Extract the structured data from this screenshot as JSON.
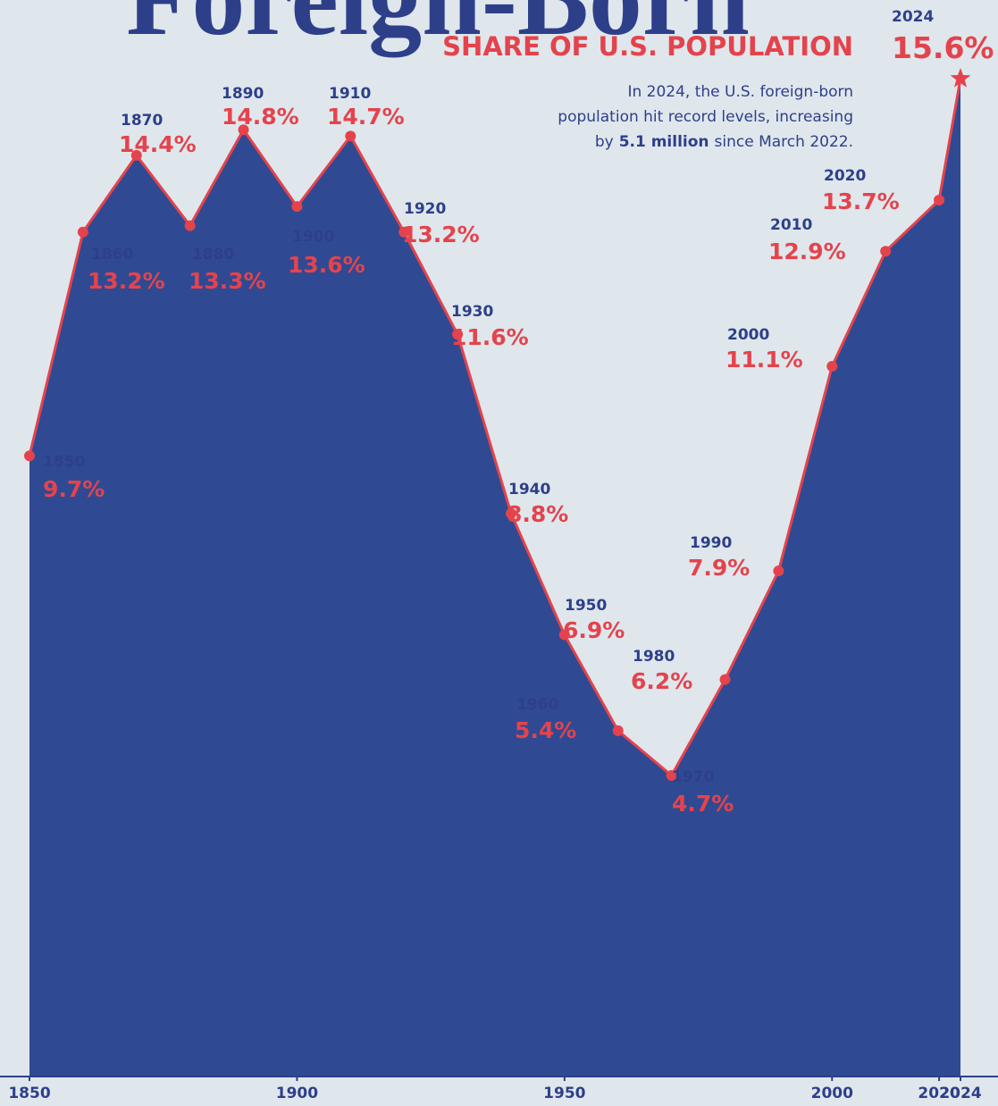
{
  "chart_data": {
    "type": "area",
    "title": "Foreign-Born",
    "subtitle": "SHARE OF U.S. POPULATION",
    "annotation": {
      "line1": "In 2024, the U.S. foreign-born",
      "line2": "population hit record levels, increasing",
      "line3_start": "by",
      "line3_bold": "5.1 million",
      "line3_end": "since March 2022."
    },
    "x": [
      1850,
      1860,
      1870,
      1880,
      1890,
      1900,
      1910,
      1920,
      1930,
      1940,
      1950,
      1960,
      1970,
      1980,
      1990,
      2000,
      2010,
      2020,
      2024
    ],
    "values": [
      9.7,
      13.2,
      14.4,
      13.3,
      14.8,
      13.6,
      14.7,
      13.2,
      11.6,
      8.8,
      6.9,
      5.4,
      4.7,
      6.2,
      7.9,
      11.1,
      12.9,
      13.7,
      15.6
    ],
    "value_labels": [
      "9.7%",
      "13.2%",
      "14.4%",
      "13.3%",
      "14.8%",
      "13.6%",
      "14.7%",
      "13.2%",
      "11.6%",
      "8.8%",
      "6.9%",
      "5.4%",
      "4.7%",
      "6.2%",
      "7.9%",
      "11.1%",
      "12.9%",
      "13.7%",
      "15.6%"
    ],
    "xlim": [
      1850,
      2024
    ],
    "xticks": [
      1850,
      1900,
      1950,
      2000,
      2020,
      2024
    ],
    "color": "#2f4a92",
    "line_color": "#e4434d"
  }
}
